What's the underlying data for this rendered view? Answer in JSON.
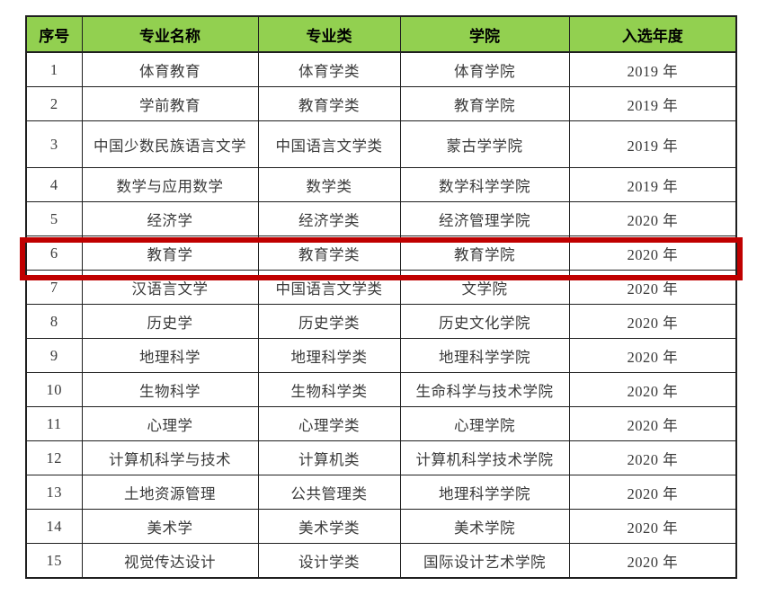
{
  "colors": {
    "page_bg": "#ffffff",
    "header_bg": "#92d050",
    "header_text": "#000000",
    "body_text": "#3a3a3a",
    "grid_line": "#1f1f1f",
    "highlight_border": "#c00000"
  },
  "table": {
    "columns": [
      {
        "key": "no",
        "label": "序号"
      },
      {
        "key": "major",
        "label": "专业名称"
      },
      {
        "key": "category",
        "label": "专业类"
      },
      {
        "key": "college",
        "label": "学院"
      },
      {
        "key": "year",
        "label": "入选年度"
      }
    ],
    "highlighted_row_no": "6",
    "rows": [
      {
        "no": "1",
        "major": "体育教育",
        "category": "体育学类",
        "college": "体育学院",
        "year": "2019 年"
      },
      {
        "no": "2",
        "major": "学前教育",
        "category": "教育学类",
        "college": "教育学院",
        "year": "2019 年"
      },
      {
        "no": "3",
        "major": "中国少数民族语言文学",
        "category": "中国语言文学类",
        "college": "蒙古学学院",
        "year": "2019 年"
      },
      {
        "no": "4",
        "major": "数学与应用数学",
        "category": "数学类",
        "college": "数学科学学院",
        "year": "2019 年"
      },
      {
        "no": "5",
        "major": "经济学",
        "category": "经济学类",
        "college": "经济管理学院",
        "year": "2020 年"
      },
      {
        "no": "6",
        "major": "教育学",
        "category": "教育学类",
        "college": "教育学院",
        "year": "2020 年",
        "highlighted": true
      },
      {
        "no": "7",
        "major": "汉语言文学",
        "category": "中国语言文学类",
        "college": "文学院",
        "year": "2020 年"
      },
      {
        "no": "8",
        "major": "历史学",
        "category": "历史学类",
        "college": "历史文化学院",
        "year": "2020 年"
      },
      {
        "no": "9",
        "major": "地理科学",
        "category": "地理科学类",
        "college": "地理科学学院",
        "year": "2020 年"
      },
      {
        "no": "10",
        "major": "生物科学",
        "category": "生物科学类",
        "college": "生命科学与技术学院",
        "year": "2020 年"
      },
      {
        "no": "11",
        "major": "心理学",
        "category": "心理学类",
        "college": "心理学院",
        "year": "2020 年"
      },
      {
        "no": "12",
        "major": "计算机科学与技术",
        "category": "计算机类",
        "college": "计算机科学技术学院",
        "year": "2020 年"
      },
      {
        "no": "13",
        "major": "土地资源管理",
        "category": "公共管理类",
        "college": "地理科学学院",
        "year": "2020 年"
      },
      {
        "no": "14",
        "major": "美术学",
        "category": "美术学类",
        "college": "美术学院",
        "year": "2020 年"
      },
      {
        "no": "15",
        "major": "视觉传达设计",
        "category": "设计学类",
        "college": "国际设计艺术学院",
        "year": "2020 年"
      }
    ]
  }
}
